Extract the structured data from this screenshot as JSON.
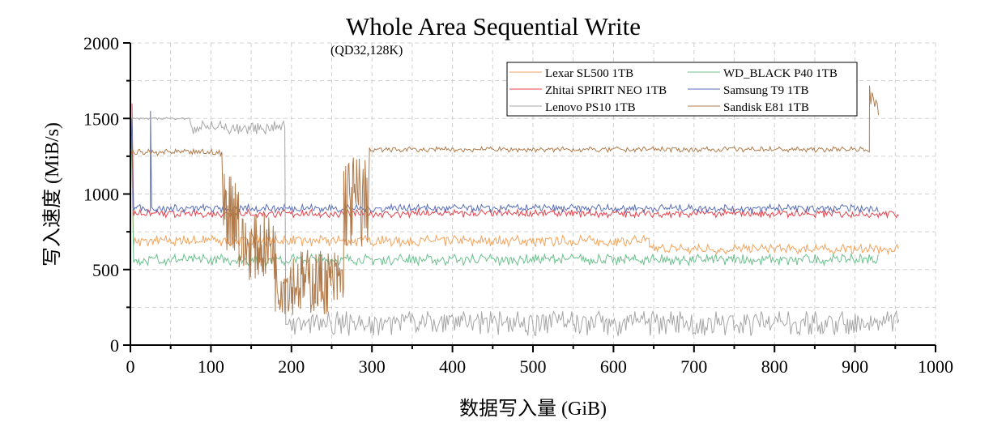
{
  "chart_data": {
    "type": "line",
    "title": "Whole Area Sequential Write",
    "subtitle": "(QD32,128K)",
    "xlabel": "数据写入量 (GiB)",
    "ylabel": "写入速度 (MiB/s)",
    "xlim": [
      0,
      1000
    ],
    "ylim": [
      0,
      2000
    ],
    "xticks": [
      0,
      100,
      200,
      300,
      400,
      500,
      600,
      700,
      800,
      900,
      1000
    ],
    "yticks": [
      0,
      500,
      1000,
      1500,
      2000
    ],
    "grid": true,
    "legend_position": "top-right",
    "series": [
      {
        "name": "Lexar SL500 1TB",
        "color": "#f3a35c",
        "spikes": [
          [
            0,
            1620
          ]
        ],
        "segments": [
          [
            4,
            645,
            690,
            25
          ],
          [
            645,
            955,
            635,
            22
          ]
        ]
      },
      {
        "name": "WD_BLACK P40 1TB",
        "color": "#6cc08e",
        "spikes": [
          [
            1,
            1500
          ]
        ],
        "segments": [
          [
            4,
            930,
            565,
            25
          ]
        ]
      },
      {
        "name": "Zhitai SPIRIT NEO 1TB",
        "color": "#e8404c",
        "spikes": [
          [
            2,
            1600
          ]
        ],
        "segments": [
          [
            4,
            955,
            870,
            18
          ]
        ]
      },
      {
        "name": "Samsung T9 1TB",
        "color": "#5b6fb8",
        "spikes": [
          [
            1,
            1500
          ],
          [
            25,
            1550
          ]
        ],
        "segments": [
          [
            4,
            930,
            905,
            18
          ]
        ]
      },
      {
        "name": "Lenovo PS10 1TB",
        "color": "#a6a6a6",
        "spikes": [],
        "segments": [
          [
            0,
            75,
            1500,
            5
          ],
          [
            75,
            192,
            1440,
            30
          ],
          [
            193,
            955,
            160,
            45
          ]
        ]
      },
      {
        "name": "Sandisk E81 1TB",
        "color": "#b07b4c",
        "spikes": [],
        "segments": [
          [
            0,
            115,
            1275,
            15
          ],
          [
            115,
            135,
            900,
            280
          ],
          [
            135,
            180,
            650,
            220
          ],
          [
            180,
            265,
            420,
            220
          ],
          [
            265,
            295,
            950,
            330
          ],
          [
            297,
            918,
            1295,
            12
          ],
          [
            918,
            930,
            1620,
            70
          ]
        ]
      }
    ]
  }
}
